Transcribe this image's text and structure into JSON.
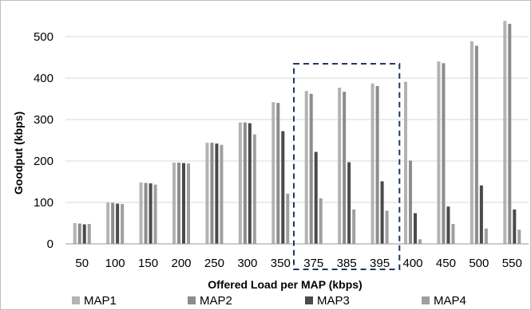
{
  "chart_data": {
    "type": "bar",
    "xlabel": "Offered Load per MAP (kbps)",
    "ylabel": "Goodput (kbps)",
    "ylim": [
      0,
      550
    ],
    "yticks": [
      0,
      100,
      200,
      300,
      400,
      500
    ],
    "grid": true,
    "legend_position": "bottom",
    "highlight": {
      "from_category": "375",
      "to_category": "395",
      "style": "dashed-box"
    },
    "categories": [
      "50",
      "100",
      "150",
      "200",
      "250",
      "300",
      "350",
      "375",
      "385",
      "395",
      "400",
      "450",
      "500",
      "550"
    ],
    "series": [
      {
        "name": "MAP1",
        "color": "#b3b3b3",
        "values": [
          50,
          100,
          148,
          196,
          244,
          293,
          342,
          369,
          377,
          387,
          391,
          440,
          489,
          538
        ]
      },
      {
        "name": "MAP2",
        "color": "#8c8c8c",
        "values": [
          49,
          99,
          147,
          196,
          244,
          293,
          340,
          362,
          367,
          381,
          201,
          436,
          478,
          531
        ]
      },
      {
        "name": "MAP3",
        "color": "#4a4a4a",
        "values": [
          47,
          97,
          146,
          195,
          242,
          291,
          272,
          222,
          197,
          151,
          74,
          90,
          141,
          83
        ]
      },
      {
        "name": "MAP4",
        "color": "#9f9f9f",
        "values": [
          48,
          96,
          143,
          194,
          239,
          264,
          121,
          110,
          83,
          80,
          11,
          48,
          37,
          34
        ]
      }
    ]
  }
}
